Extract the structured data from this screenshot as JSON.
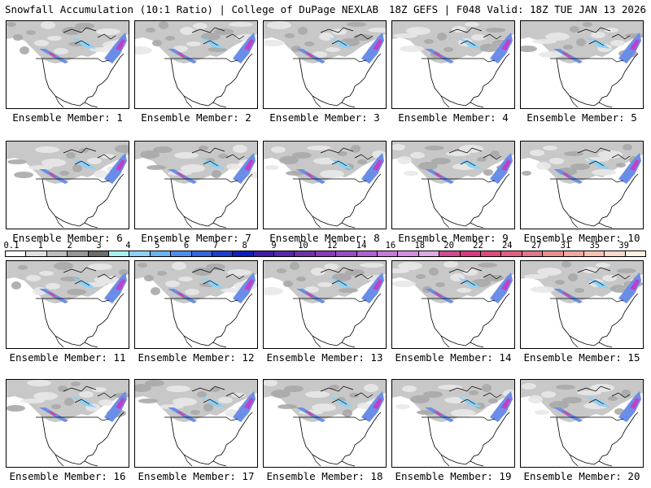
{
  "header": {
    "title_left": "Snowfall Accumulation (10:1 Ratio) | College of DuPage NEXLAB",
    "title_right": "18Z GEFS | F048 Valid: 18Z TUE JAN 13 2026"
  },
  "members": [
    {
      "label": "Ensemble Member: 1"
    },
    {
      "label": "Ensemble Member: 2"
    },
    {
      "label": "Ensemble Member: 3"
    },
    {
      "label": "Ensemble Member: 4"
    },
    {
      "label": "Ensemble Member: 5"
    },
    {
      "label": "Ensemble Member: 6"
    },
    {
      "label": "Ensemble Member: 7"
    },
    {
      "label": "Ensemble Member: 8"
    },
    {
      "label": "Ensemble Member: 9"
    },
    {
      "label": "Ensemble Member: 10"
    },
    {
      "label": "Ensemble Member: 11"
    },
    {
      "label": "Ensemble Member: 12"
    },
    {
      "label": "Ensemble Member: 13"
    },
    {
      "label": "Ensemble Member: 14"
    },
    {
      "label": "Ensemble Member: 15"
    },
    {
      "label": "Ensemble Member: 16"
    },
    {
      "label": "Ensemble Member: 17"
    },
    {
      "label": "Ensemble Member: 18"
    },
    {
      "label": "Ensemble Member: 19"
    },
    {
      "label": "Ensemble Member: 20"
    }
  ],
  "colorbar": {
    "labels": [
      "0.1",
      "1",
      "2",
      "3",
      "4",
      "5",
      "6",
      "7",
      "8",
      "9",
      "10",
      "12",
      "14",
      "16",
      "18",
      "20",
      "22",
      "24",
      "27",
      "31",
      "35",
      "39"
    ],
    "colors": [
      "#ffffff",
      "#e0e0e0",
      "#bdbdbd",
      "#969696",
      "#6d6d6d",
      "#a6f0f0",
      "#8ed0f5",
      "#6ab4f0",
      "#4c8ef0",
      "#3366e0",
      "#1a3fd0",
      "#0a1fc0",
      "#3f1fa8",
      "#5a26b0",
      "#7030a8",
      "#8a3ab8",
      "#9b4cc4",
      "#b060d0",
      "#c878d8",
      "#d28ee0",
      "#e0a8e8",
      "#d04a90",
      "#d83a80",
      "#e04a78",
      "#e06080",
      "#e07888",
      "#e89090",
      "#f0a8a0",
      "#f8c0b0",
      "#fcd8c8",
      "#fff0e0"
    ]
  }
}
